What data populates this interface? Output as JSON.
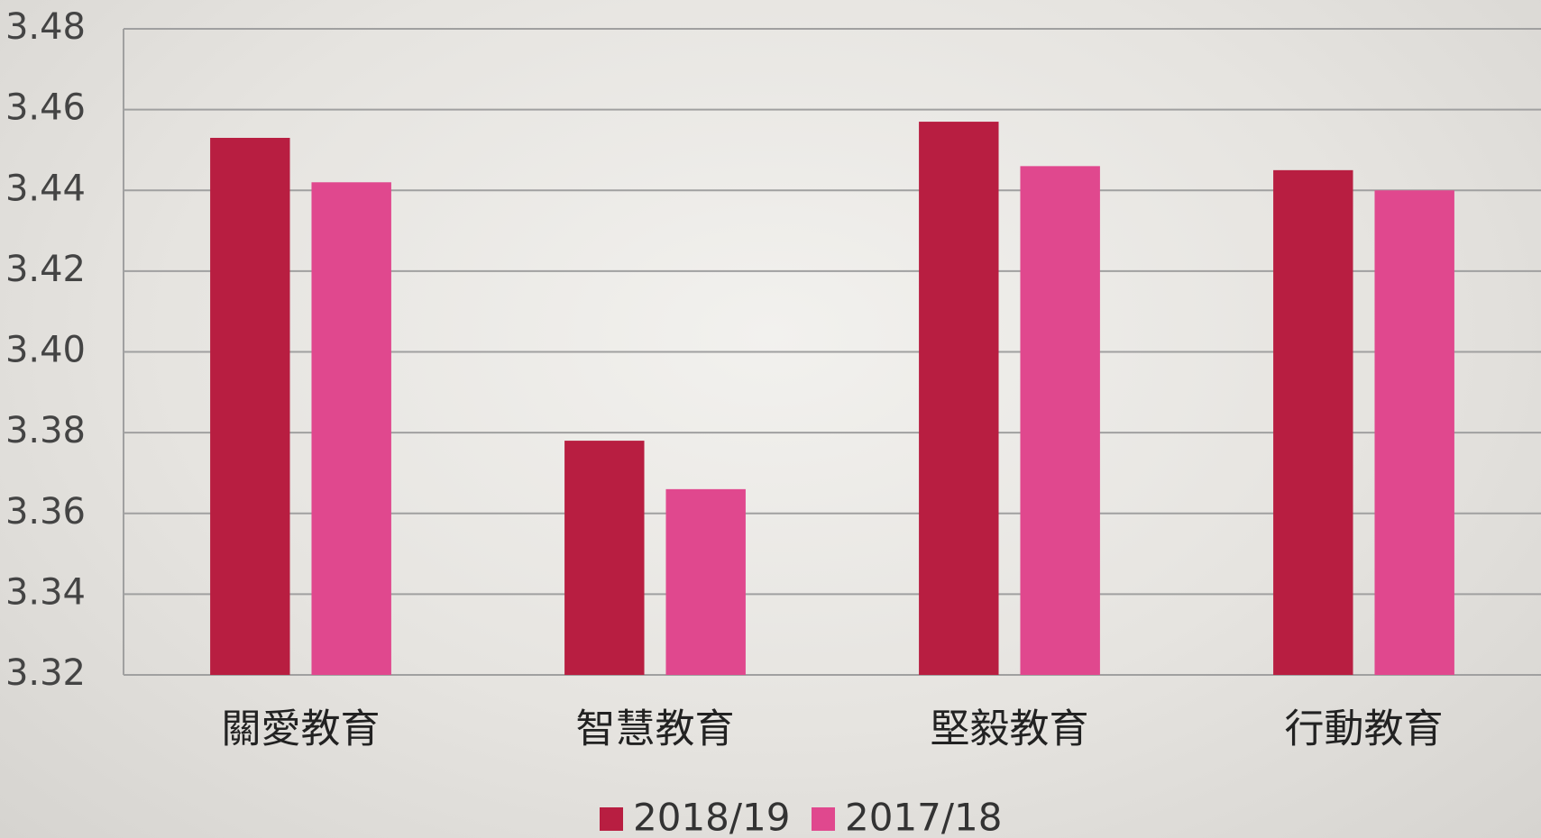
{
  "chart_data": {
    "type": "bar",
    "categories": [
      "關愛教育",
      "智慧教育",
      "堅毅教育",
      "行動教育"
    ],
    "series": [
      {
        "name": "2018/19",
        "color": "#b81e41",
        "values": [
          3.453,
          3.378,
          3.457,
          3.445
        ]
      },
      {
        "name": "2017/18",
        "color": "#e0488e",
        "values": [
          3.442,
          3.366,
          3.446,
          3.44
        ]
      }
    ],
    "ylim": [
      3.32,
      3.48
    ],
    "yticks": [
      3.32,
      3.34,
      3.36,
      3.38,
      {
        "value": 3.4,
        "label": "3.40"
      },
      3.42,
      3.44,
      3.46,
      3.48
    ],
    "grid": true,
    "legend": "bottom"
  }
}
